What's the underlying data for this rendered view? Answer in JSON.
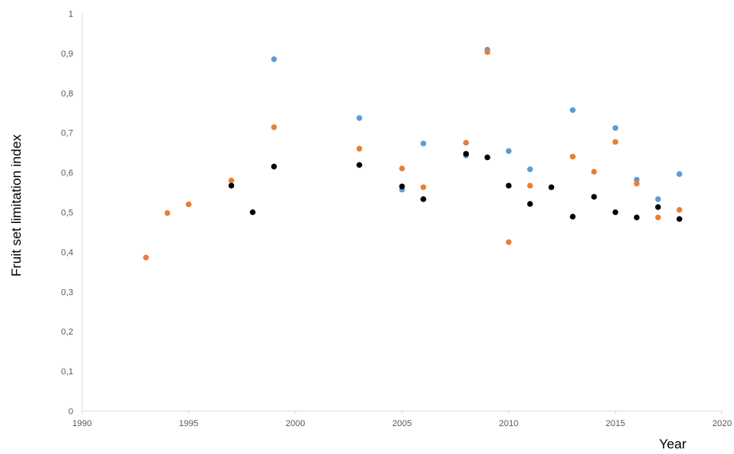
{
  "chart_data": {
    "type": "scatter",
    "title": "",
    "xlabel": "Year",
    "ylabel": "Fruit set limitation index",
    "xlim": [
      1990,
      2020
    ],
    "ylim": [
      0,
      1
    ],
    "x_ticks": [
      "1990",
      "1995",
      "2000",
      "2005",
      "2010",
      "2015",
      "2020"
    ],
    "y_ticks": [
      "0",
      "0,1",
      "0,2",
      "0,3",
      "0,4",
      "0,5",
      "0,6",
      "0,7",
      "0,8",
      "0,9",
      "1"
    ],
    "grid": false,
    "legend": "none",
    "series": [
      {
        "color": "#5B9BD5",
        "points": [
          [
            1999,
            0.885
          ],
          [
            2003,
            0.737
          ],
          [
            2005,
            0.557
          ],
          [
            2006,
            0.673
          ],
          [
            2008,
            0.643
          ],
          [
            2009,
            0.909
          ],
          [
            2010,
            0.654
          ],
          [
            2011,
            0.608
          ],
          [
            2013,
            0.757
          ],
          [
            2015,
            0.712
          ],
          [
            2016,
            0.582
          ],
          [
            2017,
            0.533
          ],
          [
            2018,
            0.596
          ]
        ]
      },
      {
        "color": "#ED7D31",
        "points": [
          [
            1993,
            0.386
          ],
          [
            1994,
            0.498
          ],
          [
            1995,
            0.52
          ],
          [
            1997,
            0.58
          ],
          [
            1999,
            0.714
          ],
          [
            2003,
            0.66
          ],
          [
            2005,
            0.61
          ],
          [
            2006,
            0.563
          ],
          [
            2008,
            0.675
          ],
          [
            2009,
            0.903
          ],
          [
            2010,
            0.425
          ],
          [
            2011,
            0.567
          ],
          [
            2013,
            0.64
          ],
          [
            2014,
            0.602
          ],
          [
            2015,
            0.677
          ],
          [
            2016,
            0.572
          ],
          [
            2017,
            0.487
          ],
          [
            2018,
            0.506
          ]
        ]
      },
      {
        "color": "#000000",
        "points": [
          [
            1997,
            0.567
          ],
          [
            1998,
            0.5
          ],
          [
            1999,
            0.615
          ],
          [
            2003,
            0.619
          ],
          [
            2005,
            0.565
          ],
          [
            2006,
            0.533
          ],
          [
            2008,
            0.647
          ],
          [
            2009,
            0.638
          ],
          [
            2010,
            0.567
          ],
          [
            2011,
            0.521
          ],
          [
            2012,
            0.563
          ],
          [
            2013,
            0.489
          ],
          [
            2014,
            0.539
          ],
          [
            2015,
            0.5
          ],
          [
            2016,
            0.487
          ],
          [
            2017,
            0.513
          ],
          [
            2018,
            0.483
          ]
        ]
      }
    ]
  }
}
